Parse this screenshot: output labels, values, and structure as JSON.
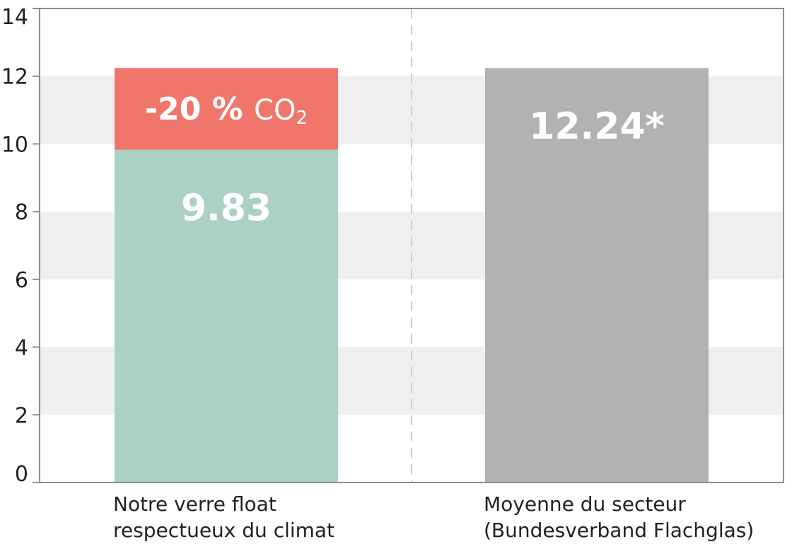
{
  "chart_data": {
    "type": "bar",
    "ylim": [
      0,
      14
    ],
    "yticks": [
      "0",
      "2",
      "4",
      "6",
      "8",
      "10",
      "12",
      "14"
    ],
    "grid": "alternating horizontal bands",
    "categories": [
      [
        "Notre verre float",
        "respectueux du climat"
      ],
      [
        "Moyenne du secteur",
        "(Bundesverband Flachglas)"
      ]
    ],
    "bars": [
      {
        "segments": [
          {
            "value": 9.83,
            "label": "9.83",
            "color": "#abd0c4"
          },
          {
            "value": 2.41,
            "label_main": "-20 %",
            "label_chem": "CO",
            "label_sub": "2",
            "color": "#f0766b"
          }
        ],
        "total": 12.24
      },
      {
        "segments": [
          {
            "value": 12.24,
            "label": "12.24*",
            "color": "#b2b2b2"
          }
        ],
        "total": 12.24
      }
    ],
    "colors": {
      "band": "#efefef",
      "axis": "#8c8c8c",
      "divider": "#cccccc"
    }
  }
}
